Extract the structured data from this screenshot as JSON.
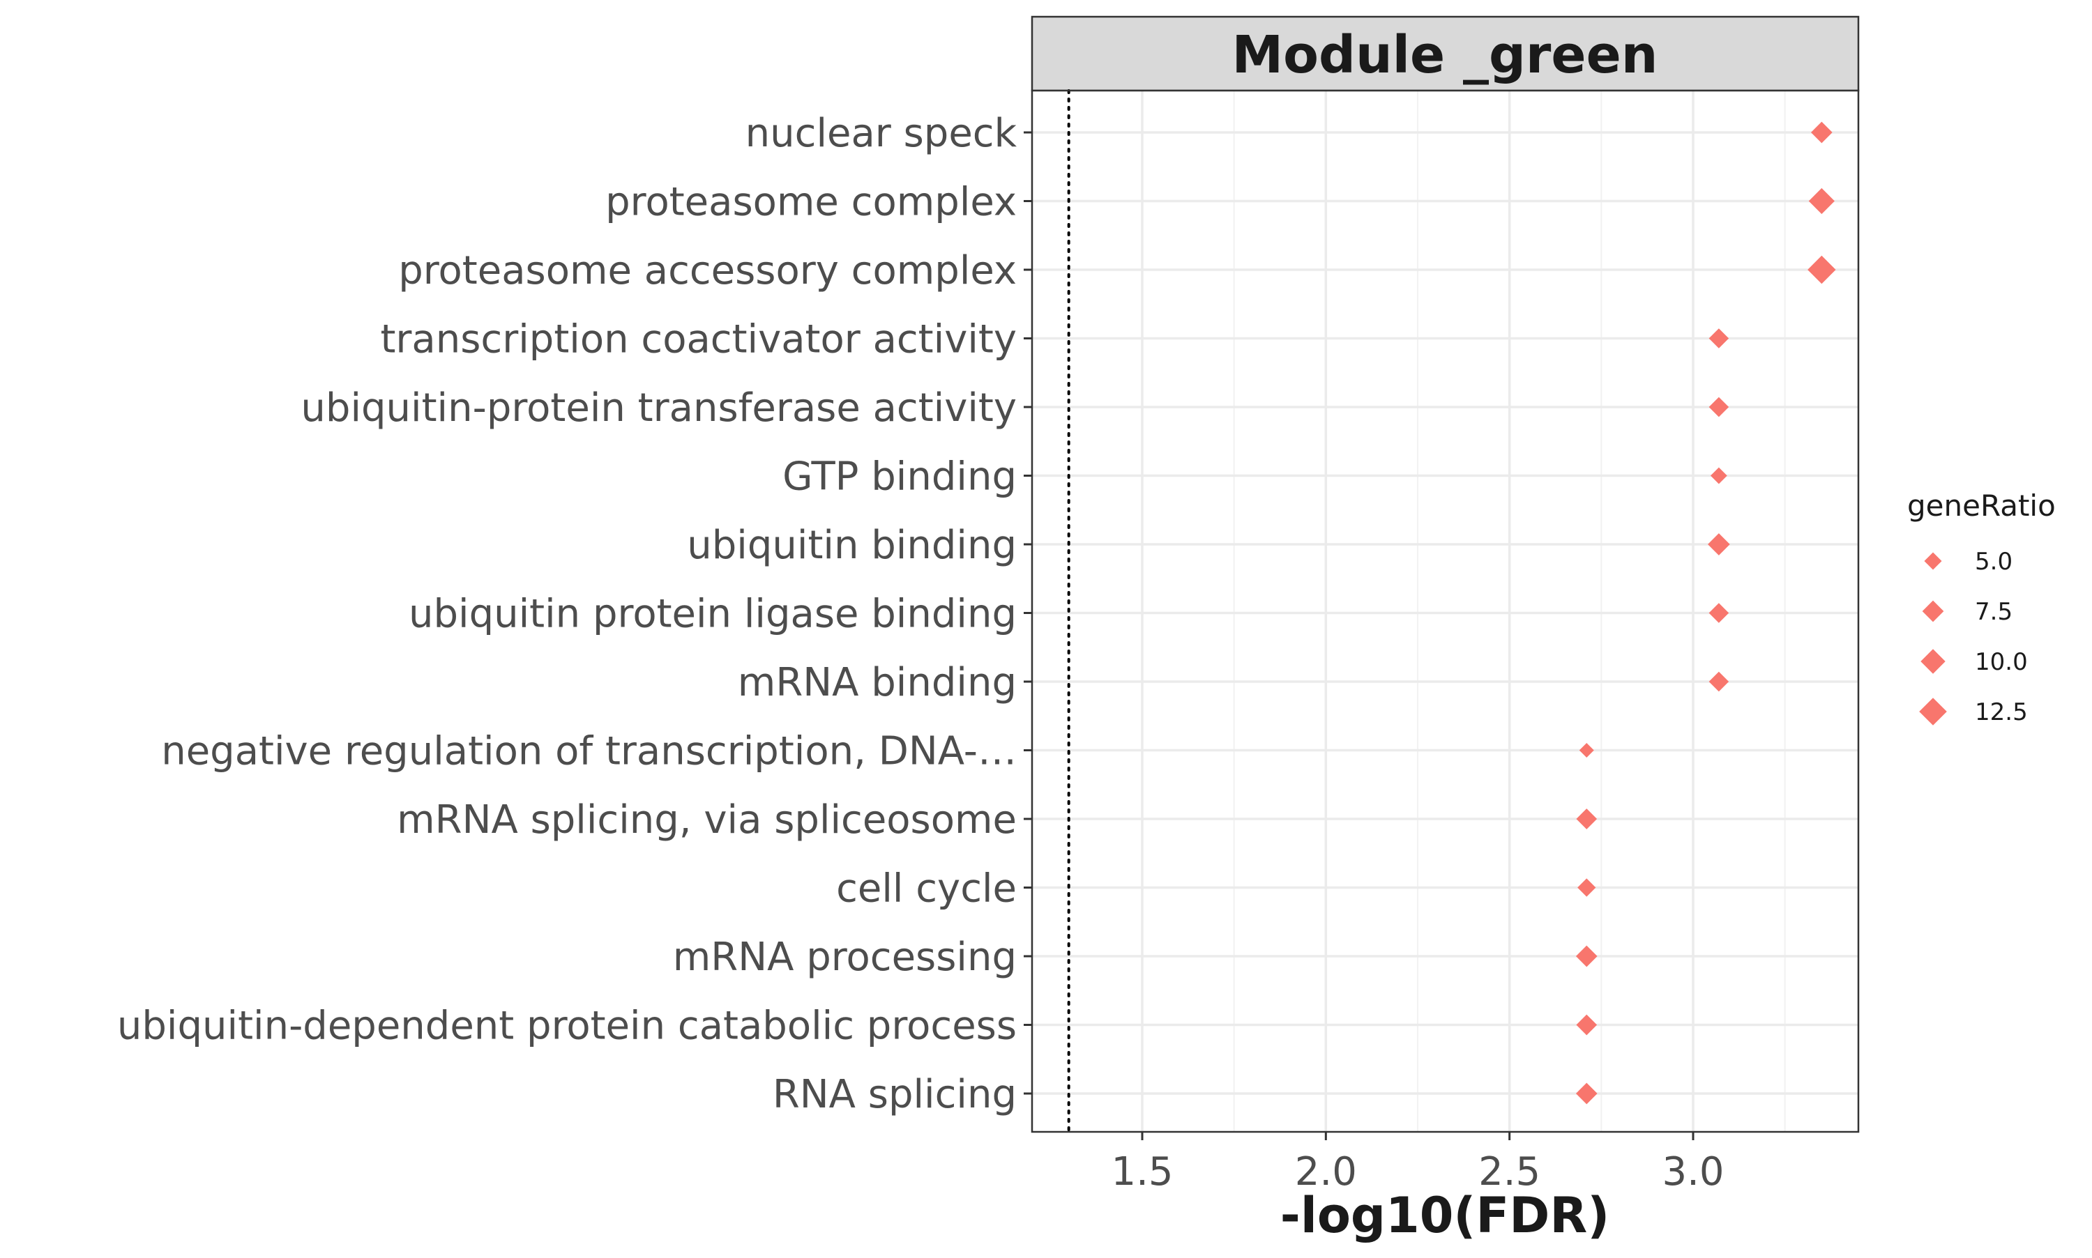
{
  "chart_data": {
    "type": "scatter",
    "facet_title": "Module _green",
    "xlabel": "-log10(FDR)",
    "ylabel": "",
    "xlim": [
      1.2,
      3.45
    ],
    "x_ticks": [
      1.5,
      2.0,
      2.5,
      3.0
    ],
    "x_tick_labels": [
      "1.5",
      "2.0",
      "2.5",
      "3.0"
    ],
    "reference_line_x": 1.3,
    "grid": true,
    "marker": "diamond",
    "color": "#F8766D",
    "categories": [
      "nuclear speck",
      "proteasome complex",
      "proteasome accessory complex",
      "transcription coactivator activity",
      "ubiquitin-protein transferase activity",
      "GTP binding",
      "ubiquitin binding",
      "ubiquitin protein ligase binding",
      "mRNA binding",
      "negative regulation of transcription, DNA-…",
      "mRNA splicing, via spliceosome",
      "cell cycle",
      "mRNA processing",
      "ubiquitin-dependent protein catabolic process",
      "RNA splicing"
    ],
    "x": [
      3.35,
      3.35,
      3.35,
      3.07,
      3.07,
      3.07,
      3.07,
      3.07,
      3.07,
      2.71,
      2.71,
      2.71,
      2.71,
      2.71,
      2.71
    ],
    "size": [
      7.5,
      11.0,
      13.0,
      6.5,
      6.5,
      4.5,
      8.0,
      6.5,
      6.5,
      3.5,
      7.0,
      5.5,
      7.5,
      7.0,
      7.5
    ],
    "size_label": "geneRatio",
    "legend": {
      "title": "geneRatio",
      "position": "right",
      "entries": [
        {
          "label": "5.0",
          "value": 5.0
        },
        {
          "label": "7.5",
          "value": 7.5
        },
        {
          "label": "10.0",
          "value": 10.0
        },
        {
          "label": "12.5",
          "value": 12.5
        }
      ]
    }
  }
}
